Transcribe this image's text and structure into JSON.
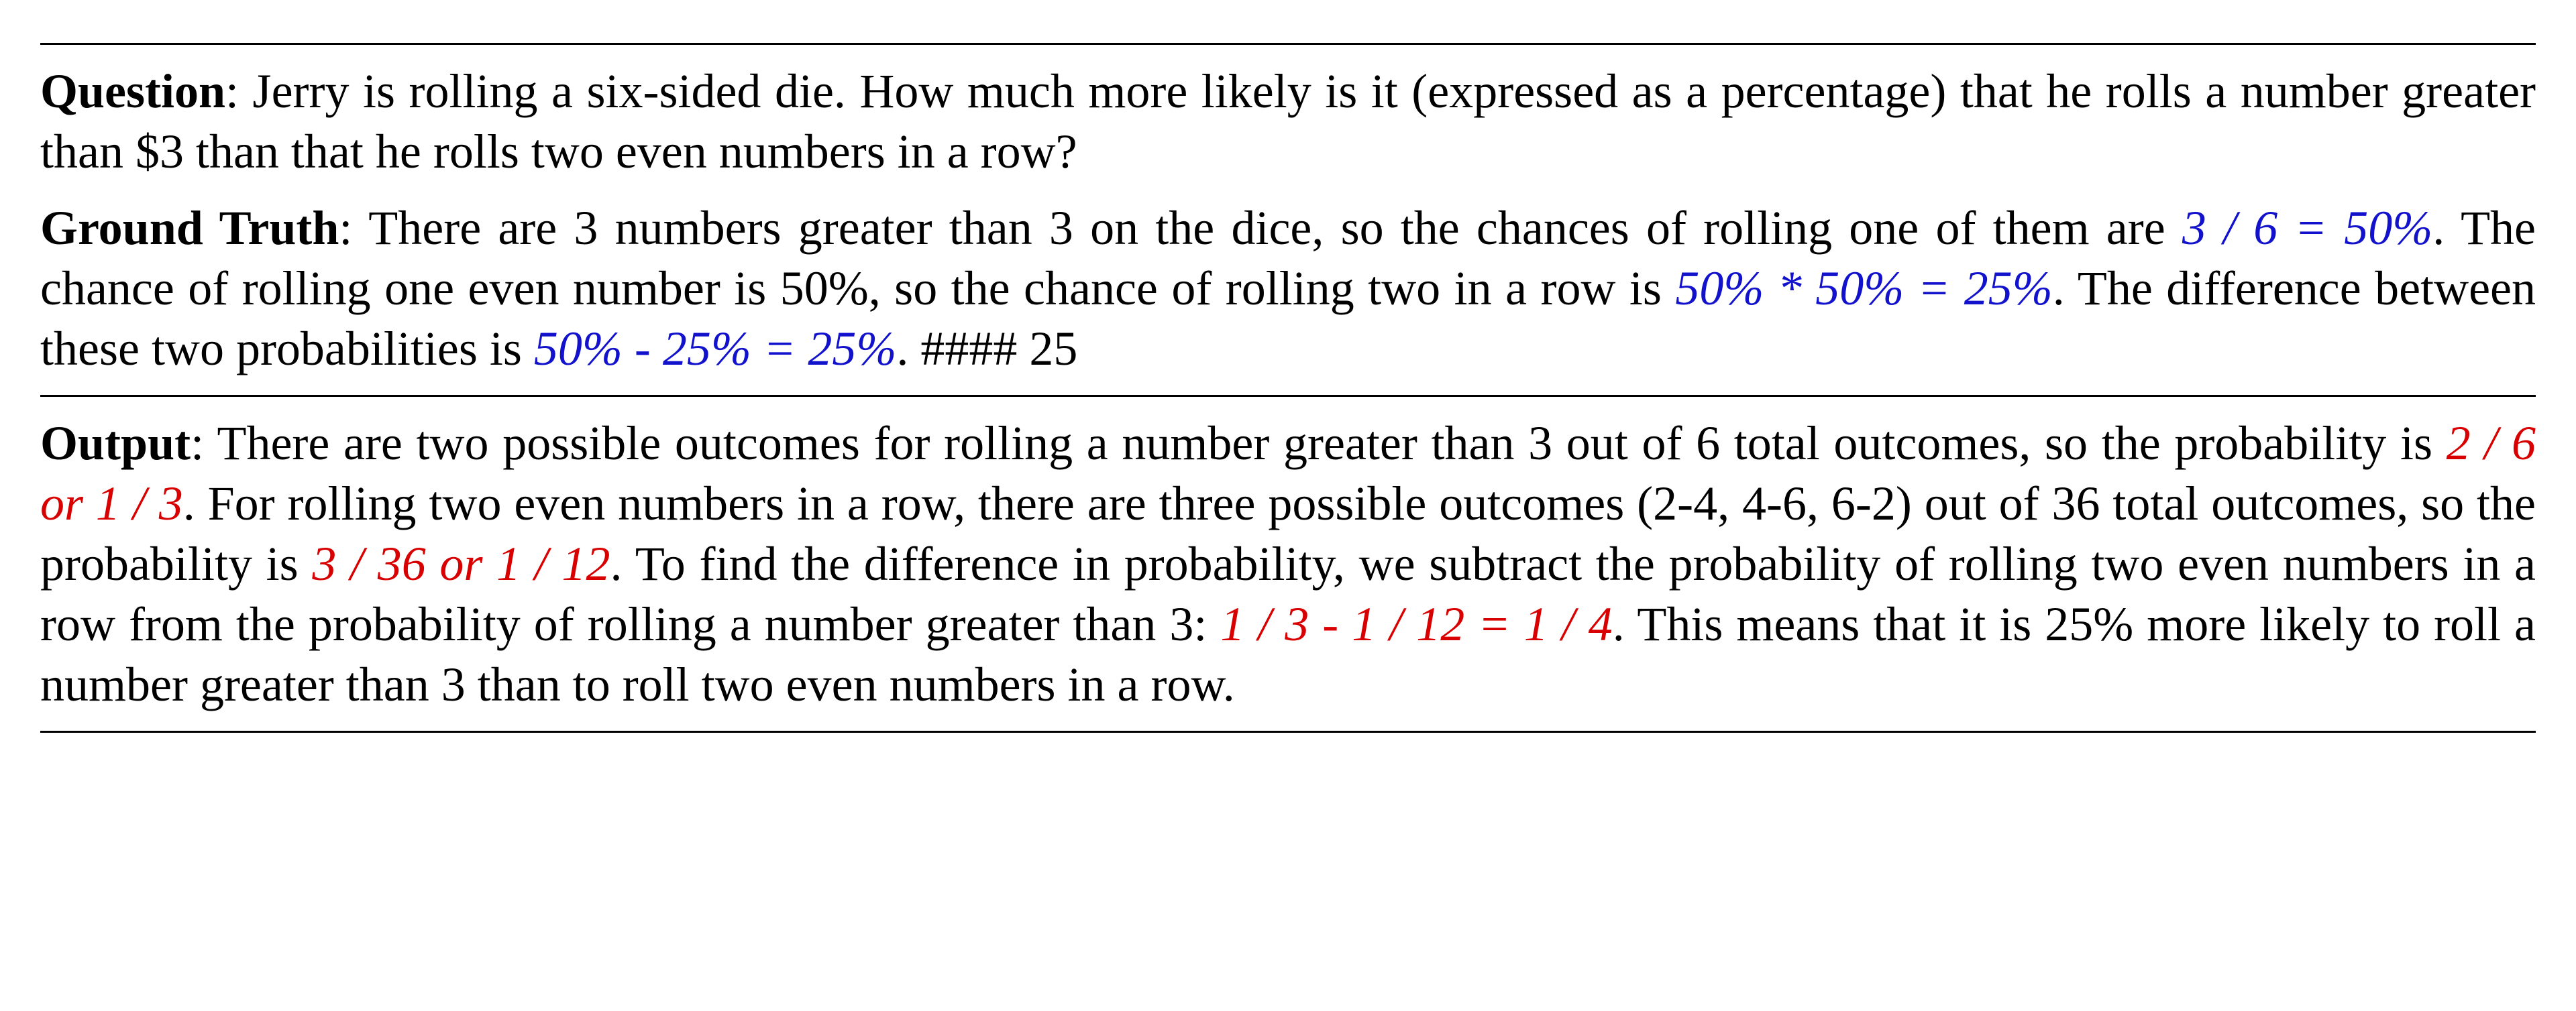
{
  "colors": {
    "text": "#000000",
    "correct": "#1212cc",
    "wrong": "#d80000",
    "background": "#ffffff",
    "rule": "#000000"
  },
  "typography": {
    "font_family": "Times New Roman",
    "font_size_pt": 54,
    "bold_weight": 700,
    "italic_for_highlight": true,
    "line_height": 1.25,
    "text_align": "justify"
  },
  "question": {
    "label": "Question",
    "text_after_label": ": Jerry is rolling a six-sided die. How much more likely is it (expressed as a percentage) that he rolls a number greater than $3 than that he rolls two even numbers in a row?"
  },
  "ground_truth": {
    "label": "Ground Truth",
    "segments": [
      {
        "kind": "plain",
        "text": ": There are 3 numbers greater than 3 on the dice, so the chances of rolling one of them are "
      },
      {
        "kind": "correct",
        "text": "3 / 6 = 50%"
      },
      {
        "kind": "plain",
        "text": ". The chance of rolling one even number is 50%, so the chance of rolling two in a row is "
      },
      {
        "kind": "correct",
        "text": "50% * 50% = 25%"
      },
      {
        "kind": "plain",
        "text": ". The difference between these two probabilities is "
      },
      {
        "kind": "correct",
        "text": "50% - 25% = 25%"
      },
      {
        "kind": "plain",
        "text": ". #### 25"
      }
    ]
  },
  "output": {
    "label": "Output",
    "segments": [
      {
        "kind": "plain",
        "text": ": There are two possible outcomes for rolling a number greater than 3 out of 6 total outcomes, so the probability is "
      },
      {
        "kind": "wrong",
        "text": "2 / 6 or 1 / 3"
      },
      {
        "kind": "plain",
        "text": ". For rolling two even numbers in a row, there are three possible outcomes (2-4, 4-6, 6-2) out of 36 total outcomes, so the probability is "
      },
      {
        "kind": "wrong",
        "text": "3 / 36 or 1 / 12"
      },
      {
        "kind": "plain",
        "text": ". To find the difference in probability, we subtract the probability of rolling two even numbers in a row from the probability of rolling a number greater than 3: "
      },
      {
        "kind": "wrong",
        "text": "1 / 3 - 1 / 12 = 1 / 4"
      },
      {
        "kind": "plain",
        "text": ". This means that it is 25% more likely to roll a number greater than 3 than to roll two even numbers in a row."
      }
    ]
  }
}
